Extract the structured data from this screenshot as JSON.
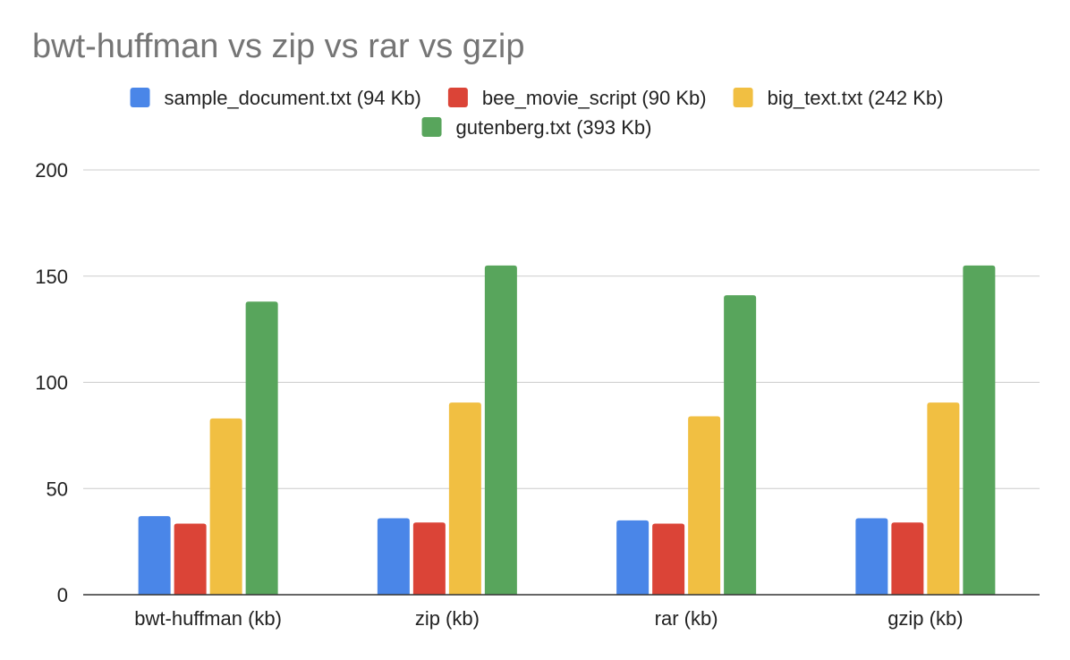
{
  "chart_data": {
    "type": "bar",
    "title": "bwt-huffman vs zip vs rar vs gzip",
    "xlabel": "",
    "ylabel": "",
    "categories": [
      "bwt-huffman (kb)",
      "zip (kb)",
      "rar (kb)",
      "gzip (kb)"
    ],
    "series": [
      {
        "name": "sample_document.txt (94 Kb)",
        "color": "#4a86e8",
        "values": [
          37,
          36,
          35,
          36
        ]
      },
      {
        "name": "bee_movie_script (90 Kb)",
        "color": "#db4437",
        "values": [
          33.5,
          34,
          33.5,
          34
        ]
      },
      {
        "name": "big_text.txt (242 Kb)",
        "color": "#f1bf42",
        "values": [
          83,
          90.5,
          84,
          90.5
        ]
      },
      {
        "name": "gutenberg.txt (393 Kb)",
        "color": "#58a55c",
        "values": [
          138,
          155,
          141,
          155
        ]
      }
    ],
    "ylim": [
      0,
      200
    ],
    "yticks": [
      0,
      50,
      100,
      150,
      200
    ],
    "grid": true,
    "legend_position": "top"
  }
}
